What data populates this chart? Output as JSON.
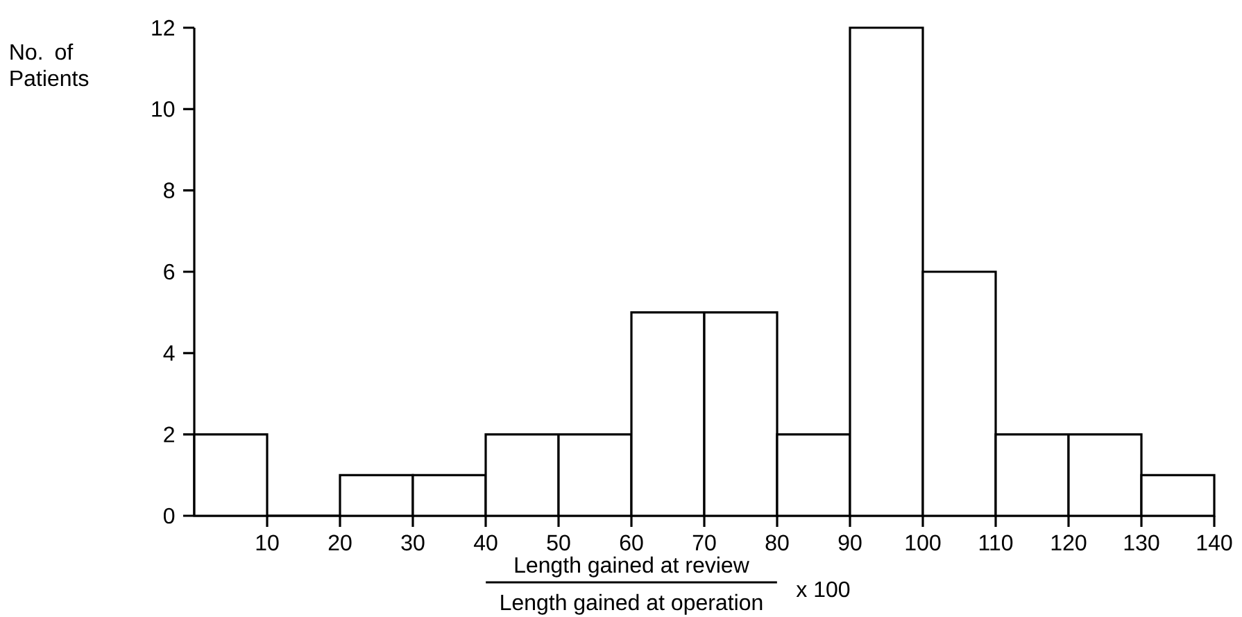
{
  "chart_data": {
    "type": "histogram",
    "bins": [
      0,
      10,
      20,
      30,
      40,
      50,
      60,
      70,
      80,
      90,
      100,
      110,
      120,
      130,
      140
    ],
    "values": [
      2,
      0,
      1,
      1,
      2,
      2,
      5,
      5,
      2,
      12,
      6,
      2,
      2,
      1
    ],
    "color": "#ffffff",
    "xlim": [
      0,
      140
    ],
    "ylim": [
      0,
      12
    ],
    "xticks": [
      10,
      20,
      30,
      40,
      50,
      60,
      70,
      80,
      90,
      100,
      110,
      120,
      130,
      140
    ],
    "yticks": [
      0,
      2,
      4,
      6,
      8,
      10,
      12
    ],
    "ylabel": "No. of Patients",
    "xlabel": "Length gained at review",
    "annotations": [
      "Length gained at operation",
      "x 100"
    ],
    "grid": false
  }
}
